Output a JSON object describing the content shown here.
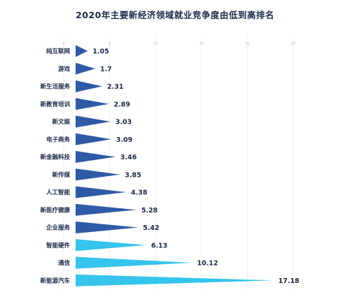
{
  "chart_data": {
    "type": "bar",
    "title": "2020年主要新经济领域就业竞争度由低到高排名",
    "categories": [
      "纯互联网",
      "游戏",
      "新生活服务",
      "新教育培训",
      "新文娱",
      "电子商务",
      "新金融科技",
      "新传媒",
      "人工智能",
      "新医疗健康",
      "企业服务",
      "智能硬件",
      "通信",
      "新能源汽车"
    ],
    "values": [
      1.05,
      1.7,
      2.31,
      2.89,
      3.03,
      3.09,
      3.46,
      3.85,
      4.38,
      5.28,
      5.42,
      6.13,
      10.12,
      17.18
    ],
    "value_labels": [
      "1.05",
      "1.7",
      "2.31",
      "2.89",
      "3.03",
      "3.09",
      "3.46",
      "3.85",
      "4.38",
      "5.28",
      "5.42",
      "6.13",
      "10.12",
      "17.18"
    ],
    "xlim": [
      0,
      20
    ],
    "x_ticks": [
      "0",
      "5",
      "10",
      "15",
      "20",
      "25"
    ],
    "grid": true,
    "colors": {
      "dark": "#2f5aa6",
      "light": "#35c4ec",
      "text": "#1c2b4a",
      "grid": "#e4e7ec"
    },
    "light_from_index": 11
  }
}
